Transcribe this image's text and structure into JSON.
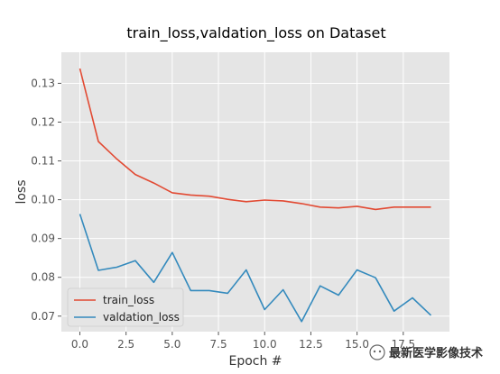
{
  "chart_data": {
    "type": "line",
    "title": "train_loss,valdation_loss on Dataset",
    "xlabel": "Epoch #",
    "ylabel": "loss",
    "xlim": [
      -1,
      20
    ],
    "ylim": [
      0.066,
      0.138
    ],
    "xticks": [
      0.0,
      2.5,
      5.0,
      7.5,
      10.0,
      12.5,
      15.0,
      17.5
    ],
    "xtick_labels": [
      "0.0",
      "2.5",
      "5.0",
      "7.5",
      "10.0",
      "12.5",
      "15.0",
      "17.5"
    ],
    "yticks": [
      0.07,
      0.08,
      0.09,
      0.1,
      0.11,
      0.12,
      0.13
    ],
    "ytick_labels": [
      "0.07",
      "0.08",
      "0.09",
      "0.10",
      "0.11",
      "0.12",
      "0.13"
    ],
    "grid": true,
    "legend_position": "lower-left",
    "series": [
      {
        "name": "train_loss",
        "color": "#e24a33",
        "x": [
          0,
          1,
          2,
          3,
          4,
          5,
          6,
          7,
          8,
          9,
          10,
          11,
          12,
          13,
          14,
          15,
          16,
          17,
          18,
          19
        ],
        "values": [
          0.1338,
          0.115,
          0.1105,
          0.1065,
          0.1043,
          0.1018,
          0.1012,
          0.1009,
          0.1001,
          0.0995,
          0.0999,
          0.0997,
          0.099,
          0.0981,
          0.0979,
          0.0983,
          0.0975,
          0.0981,
          0.0981,
          0.0981
        ]
      },
      {
        "name": "valdation_loss",
        "color": "#348abd",
        "x": [
          0,
          1,
          2,
          3,
          4,
          5,
          6,
          7,
          8,
          9,
          10,
          11,
          12,
          13,
          14,
          15,
          16,
          17,
          18,
          19
        ],
        "values": [
          0.0963,
          0.0818,
          0.0826,
          0.0843,
          0.0787,
          0.0864,
          0.0766,
          0.0766,
          0.0759,
          0.0819,
          0.0717,
          0.0768,
          0.0686,
          0.0778,
          0.0754,
          0.0819,
          0.0799,
          0.0713,
          0.0747,
          0.0702
        ]
      }
    ]
  },
  "watermark": {
    "text": "最新医学影像技术",
    "icon": "wechat-logo-icon"
  }
}
